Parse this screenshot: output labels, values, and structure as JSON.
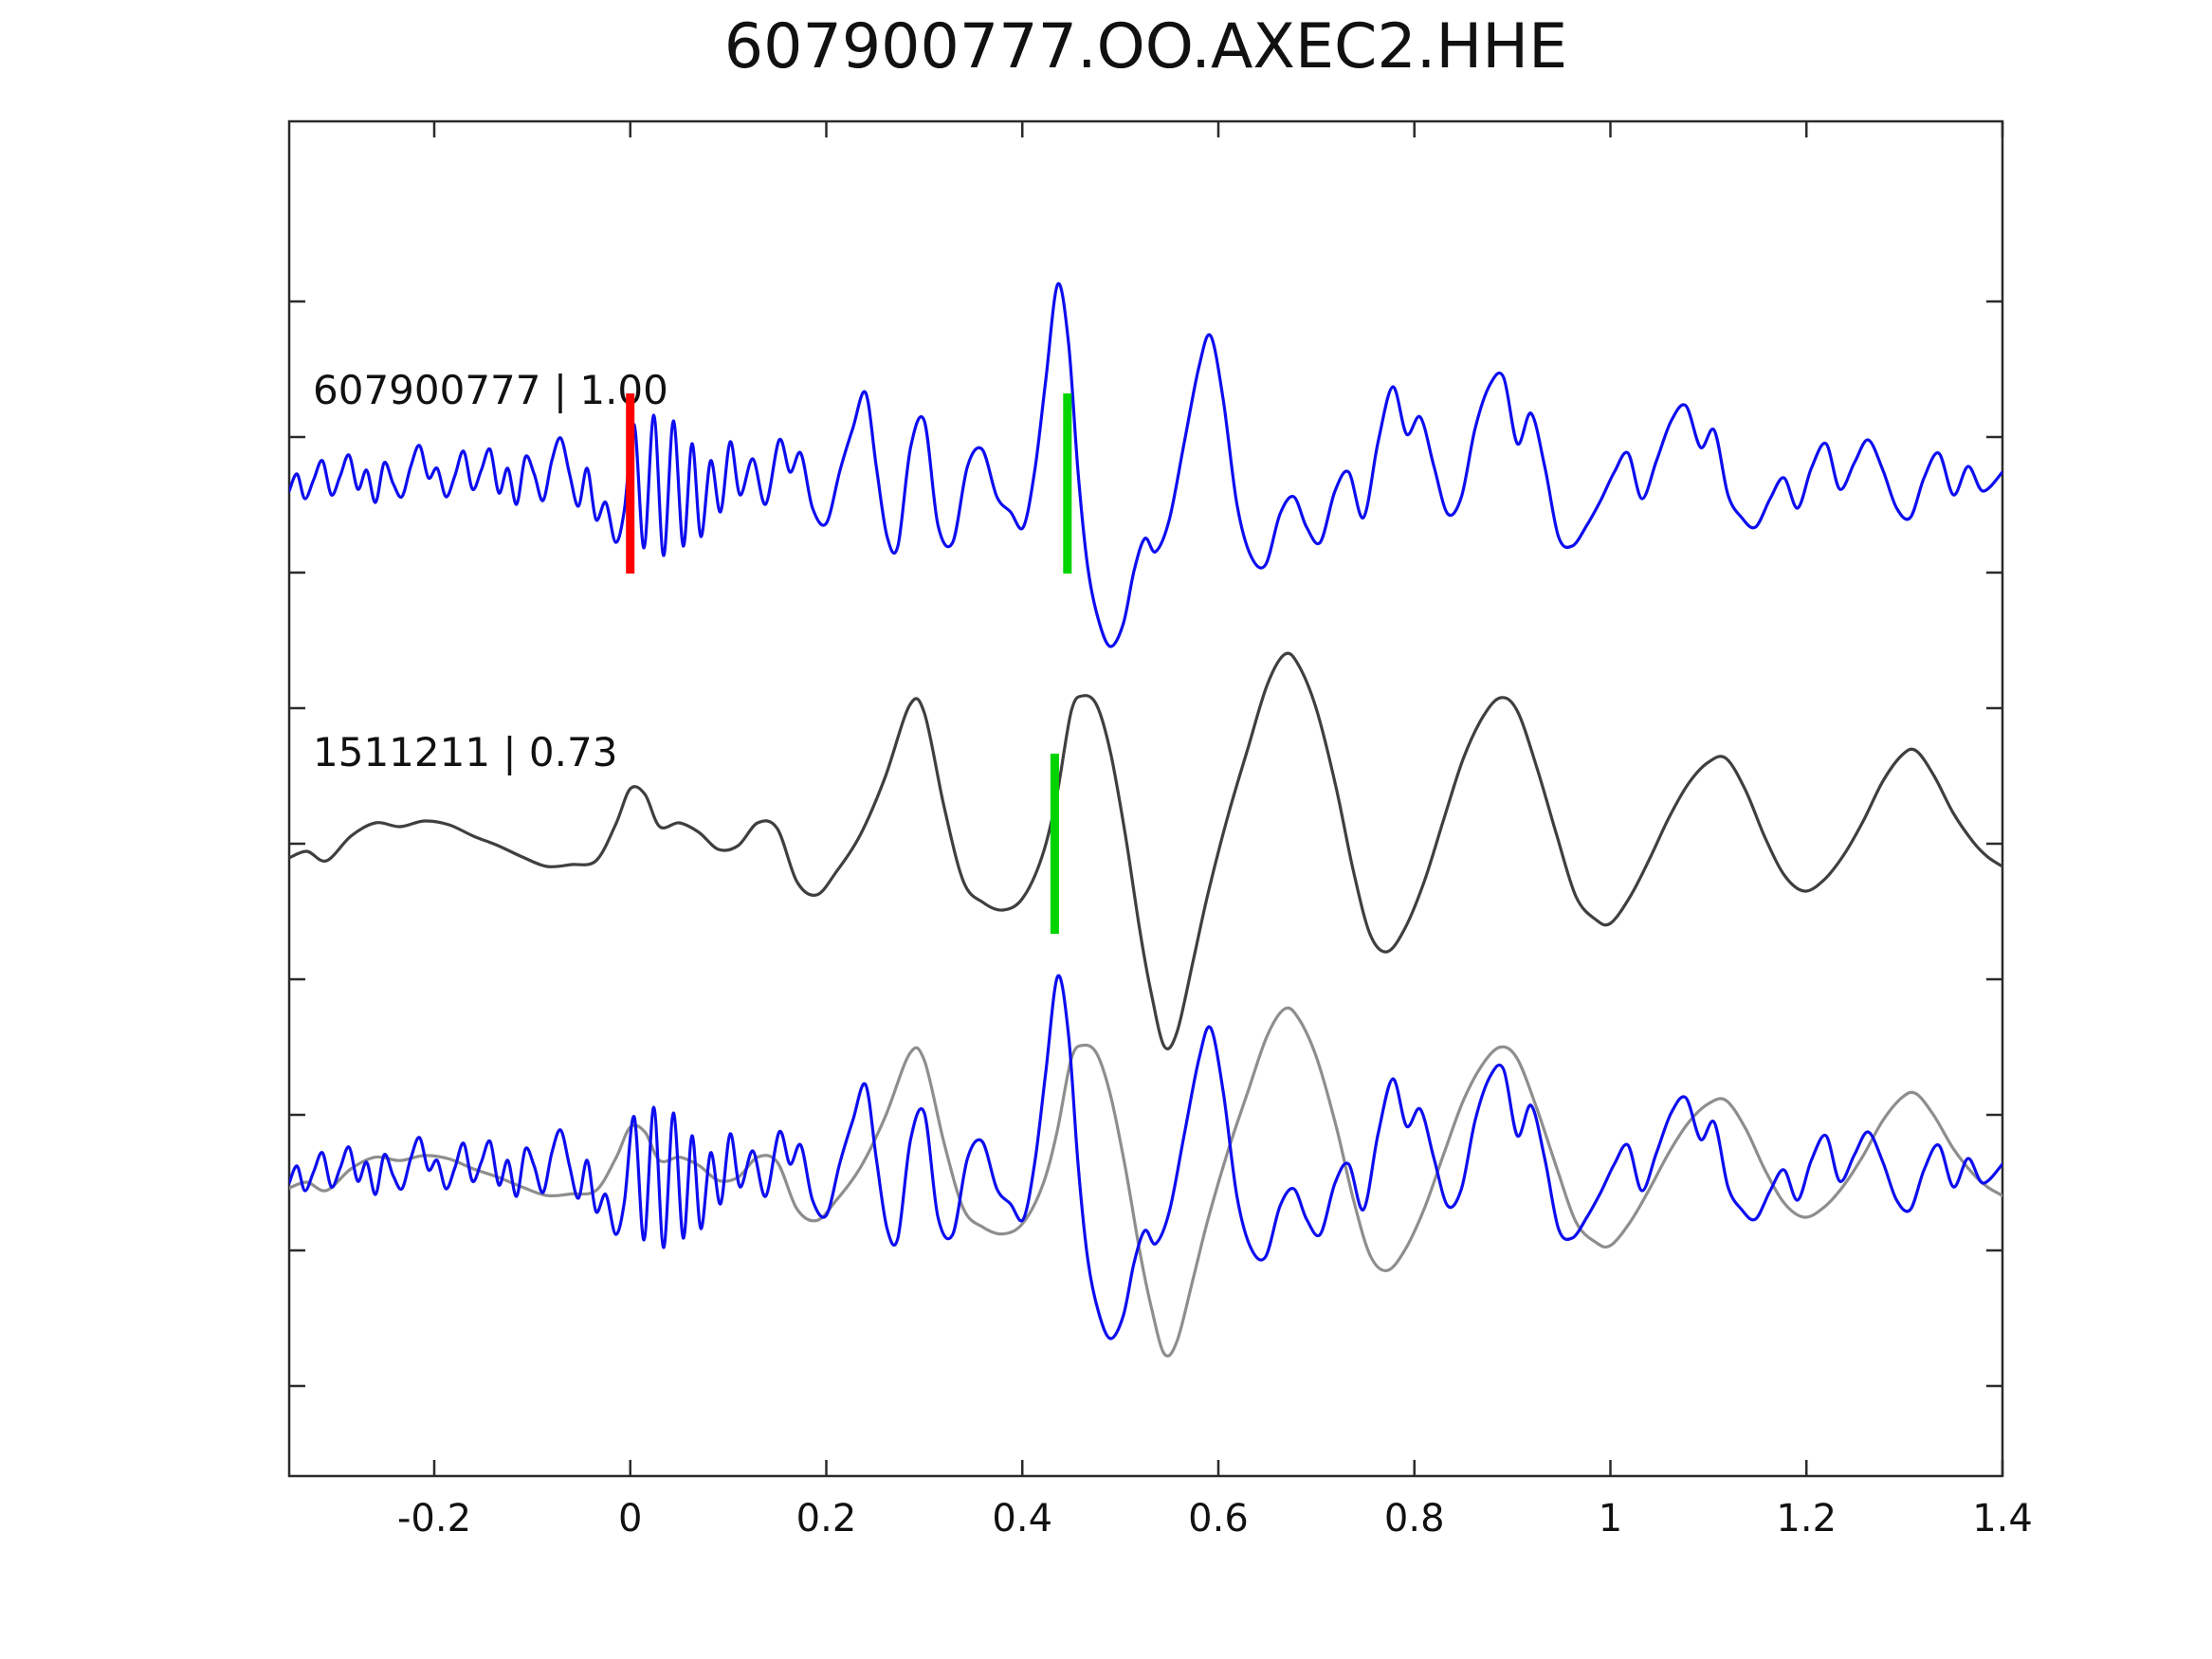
{
  "title": "607900777.OO.AXEC2.HHE",
  "colors": {
    "template_blue": "#0d0df0",
    "detection_dark_gray": "#3f3f3f",
    "overlay_light_gray": "#8e8e8e",
    "pick_red": "#ff0000",
    "pick_green": "#00d400",
    "axis": "#2b2b2b",
    "background": "#ffffff"
  },
  "chart_data": {
    "type": "line",
    "title": "607900777.OO.AXEC2.HHE",
    "xlabel": "",
    "ylabel": "",
    "xlim": [
      -0.348,
      1.4
    ],
    "grid": false,
    "legend_position": "none",
    "x_axis": {
      "tick_values": [
        -0.2,
        0,
        0.2,
        0.4,
        0.6,
        0.8,
        1,
        1.2,
        1.4
      ],
      "tick_labels": [
        "-0.2",
        "0",
        "0.2",
        "0.4",
        "0.6",
        "0.8",
        "1",
        "1.2",
        "1.4"
      ]
    },
    "y_axis": {
      "tick_labels": [],
      "note": "unlabeled normalized amplitude, three stacked traces"
    },
    "traces": [
      {
        "id": "template",
        "label": "607900777 | 1.00",
        "event_id": "607900777",
        "correlation": 1.0,
        "color": "#0d0df0",
        "row": 0,
        "points": [
          [
            -0.348,
            -8
          ],
          [
            -0.34,
            10
          ],
          [
            -0.332,
            -16
          ],
          [
            -0.323,
            4
          ],
          [
            -0.314,
            24
          ],
          [
            -0.305,
            -12
          ],
          [
            -0.296,
            8
          ],
          [
            -0.287,
            30
          ],
          [
            -0.278,
            -6
          ],
          [
            -0.269,
            14
          ],
          [
            -0.26,
            -20
          ],
          [
            -0.251,
            22
          ],
          [
            -0.242,
            0
          ],
          [
            -0.233,
            -14
          ],
          [
            -0.224,
            18
          ],
          [
            -0.215,
            40
          ],
          [
            -0.206,
            6
          ],
          [
            -0.197,
            16
          ],
          [
            -0.188,
            -14
          ],
          [
            -0.179,
            8
          ],
          [
            -0.17,
            34
          ],
          [
            -0.161,
            -6
          ],
          [
            -0.152,
            14
          ],
          [
            -0.143,
            36
          ],
          [
            -0.134,
            -10
          ],
          [
            -0.125,
            16
          ],
          [
            -0.116,
            -22
          ],
          [
            -0.107,
            28
          ],
          [
            -0.098,
            10
          ],
          [
            -0.089,
            -18
          ],
          [
            -0.08,
            24
          ],
          [
            -0.071,
            48
          ],
          [
            -0.062,
            10
          ],
          [
            -0.053,
            -24
          ],
          [
            -0.044,
            16
          ],
          [
            -0.035,
            -38
          ],
          [
            -0.025,
            -20
          ],
          [
            -0.015,
            -62
          ],
          [
            -0.006,
            -28
          ],
          [
            0.004,
            62
          ],
          [
            0.014,
            -68
          ],
          [
            0.024,
            72
          ],
          [
            0.034,
            -76
          ],
          [
            0.044,
            66
          ],
          [
            0.054,
            -66
          ],
          [
            0.063,
            42
          ],
          [
            0.072,
            -56
          ],
          [
            0.082,
            24
          ],
          [
            0.092,
            -30
          ],
          [
            0.102,
            44
          ],
          [
            0.112,
            -12
          ],
          [
            0.125,
            26
          ],
          [
            0.138,
            -22
          ],
          [
            0.152,
            46
          ],
          [
            0.163,
            12
          ],
          [
            0.174,
            32
          ],
          [
            0.186,
            -26
          ],
          [
            0.2,
            -42
          ],
          [
            0.214,
            14
          ],
          [
            0.227,
            58
          ],
          [
            0.24,
            96
          ],
          [
            0.251,
            18
          ],
          [
            0.262,
            -56
          ],
          [
            0.273,
            -66
          ],
          [
            0.286,
            38
          ],
          [
            0.3,
            66
          ],
          [
            0.314,
            -44
          ],
          [
            0.329,
            -62
          ],
          [
            0.344,
            18
          ],
          [
            0.359,
            36
          ],
          [
            0.374,
            -14
          ],
          [
            0.388,
            -30
          ],
          [
            0.401,
            -46
          ],
          [
            0.413,
            16
          ],
          [
            0.424,
            110
          ],
          [
            0.436,
            210
          ],
          [
            0.447,
            150
          ],
          [
            0.457,
            10
          ],
          [
            0.467,
            -90
          ],
          [
            0.478,
            -145
          ],
          [
            0.49,
            -172
          ],
          [
            0.503,
            -148
          ],
          [
            0.514,
            -92
          ],
          [
            0.525,
            -58
          ],
          [
            0.536,
            -72
          ],
          [
            0.55,
            -38
          ],
          [
            0.565,
            42
          ],
          [
            0.58,
            122
          ],
          [
            0.592,
            156
          ],
          [
            0.605,
            88
          ],
          [
            0.619,
            -22
          ],
          [
            0.633,
            -76
          ],
          [
            0.648,
            -86
          ],
          [
            0.663,
            -32
          ],
          [
            0.677,
            -14
          ],
          [
            0.69,
            -46
          ],
          [
            0.704,
            -62
          ],
          [
            0.719,
            -8
          ],
          [
            0.733,
            12
          ],
          [
            0.748,
            -36
          ],
          [
            0.763,
            44
          ],
          [
            0.778,
            102
          ],
          [
            0.792,
            52
          ],
          [
            0.806,
            70
          ],
          [
            0.82,
            18
          ],
          [
            0.834,
            -32
          ],
          [
            0.848,
            -14
          ],
          [
            0.862,
            58
          ],
          [
            0.877,
            104
          ],
          [
            0.891,
            112
          ],
          [
            0.905,
            42
          ],
          [
            0.919,
            74
          ],
          [
            0.933,
            18
          ],
          [
            0.947,
            -56
          ],
          [
            0.961,
            -66
          ],
          [
            0.976,
            -44
          ],
          [
            0.99,
            -18
          ],
          [
            1.004,
            12
          ],
          [
            1.018,
            32
          ],
          [
            1.032,
            -16
          ],
          [
            1.047,
            24
          ],
          [
            1.062,
            66
          ],
          [
            1.077,
            82
          ],
          [
            1.092,
            38
          ],
          [
            1.106,
            56
          ],
          [
            1.12,
            -12
          ],
          [
            1.134,
            -36
          ],
          [
            1.148,
            -46
          ],
          [
            1.163,
            -16
          ],
          [
            1.177,
            6
          ],
          [
            1.191,
            -26
          ],
          [
            1.205,
            16
          ],
          [
            1.22,
            42
          ],
          [
            1.234,
            -6
          ],
          [
            1.249,
            22
          ],
          [
            1.263,
            46
          ],
          [
            1.278,
            14
          ],
          [
            1.292,
            -26
          ],
          [
            1.306,
            -36
          ],
          [
            1.32,
            6
          ],
          [
            1.335,
            32
          ],
          [
            1.35,
            -12
          ],
          [
            1.365,
            18
          ],
          [
            1.38,
            -8
          ],
          [
            1.4,
            12
          ]
        ]
      },
      {
        "id": "detection",
        "label": "1511211 | 0.73",
        "event_id": "1511211",
        "correlation": 0.73,
        "color": "#3f3f3f",
        "row": 1,
        "points": [
          [
            -0.348,
            -15
          ],
          [
            -0.33,
            -8
          ],
          [
            -0.31,
            -18
          ],
          [
            -0.285,
            8
          ],
          [
            -0.26,
            22
          ],
          [
            -0.235,
            18
          ],
          [
            -0.21,
            24
          ],
          [
            -0.185,
            20
          ],
          [
            -0.16,
            8
          ],
          [
            -0.135,
            -2
          ],
          [
            -0.11,
            -14
          ],
          [
            -0.085,
            -24
          ],
          [
            -0.06,
            -22
          ],
          [
            -0.035,
            -18
          ],
          [
            -0.015,
            20
          ],
          [
            0.0,
            58
          ],
          [
            0.015,
            52
          ],
          [
            0.03,
            18
          ],
          [
            0.05,
            22
          ],
          [
            0.07,
            12
          ],
          [
            0.09,
            -6
          ],
          [
            0.11,
            -2
          ],
          [
            0.13,
            22
          ],
          [
            0.15,
            16
          ],
          [
            0.17,
            -40
          ],
          [
            0.19,
            -54
          ],
          [
            0.21,
            -30
          ],
          [
            0.235,
            10
          ],
          [
            0.26,
            70
          ],
          [
            0.285,
            146
          ],
          [
            0.3,
            138
          ],
          [
            0.32,
            40
          ],
          [
            0.34,
            -40
          ],
          [
            0.36,
            -62
          ],
          [
            0.38,
            -70
          ],
          [
            0.4,
            -58
          ],
          [
            0.42,
            -14
          ],
          [
            0.435,
            50
          ],
          [
            0.45,
            140
          ],
          [
            0.462,
            156
          ],
          [
            0.476,
            146
          ],
          [
            0.49,
            96
          ],
          [
            0.505,
            10
          ],
          [
            0.52,
            -92
          ],
          [
            0.532,
            -160
          ],
          [
            0.545,
            -214
          ],
          [
            0.558,
            -198
          ],
          [
            0.575,
            -120
          ],
          [
            0.59,
            -50
          ],
          [
            0.61,
            30
          ],
          [
            0.63,
            100
          ],
          [
            0.65,
            168
          ],
          [
            0.668,
            200
          ],
          [
            0.682,
            188
          ],
          [
            0.7,
            142
          ],
          [
            0.72,
            60
          ],
          [
            0.738,
            -30
          ],
          [
            0.755,
            -96
          ],
          [
            0.772,
            -114
          ],
          [
            0.79,
            -90
          ],
          [
            0.81,
            -40
          ],
          [
            0.83,
            26
          ],
          [
            0.85,
            90
          ],
          [
            0.87,
            134
          ],
          [
            0.888,
            154
          ],
          [
            0.905,
            140
          ],
          [
            0.925,
            80
          ],
          [
            0.945,
            10
          ],
          [
            0.965,
            -56
          ],
          [
            0.985,
            -80
          ],
          [
            1.0,
            -84
          ],
          [
            1.02,
            -56
          ],
          [
            1.04,
            -16
          ],
          [
            1.06,
            28
          ],
          [
            1.08,
            64
          ],
          [
            1.1,
            86
          ],
          [
            1.118,
            90
          ],
          [
            1.138,
            56
          ],
          [
            1.158,
            6
          ],
          [
            1.178,
            -34
          ],
          [
            1.198,
            -50
          ],
          [
            1.218,
            -38
          ],
          [
            1.238,
            -12
          ],
          [
            1.258,
            24
          ],
          [
            1.278,
            66
          ],
          [
            1.298,
            94
          ],
          [
            1.312,
            98
          ],
          [
            1.33,
            72
          ],
          [
            1.35,
            32
          ],
          [
            1.37,
            2
          ],
          [
            1.385,
            -14
          ],
          [
            1.4,
            -24
          ]
        ]
      }
    ],
    "overlay": {
      "row": 2,
      "members": [
        {
          "trace": "detection",
          "color": "#8e8e8e",
          "scale": 0.88
        },
        {
          "trace": "template",
          "color": "#0d0df0",
          "scale": 1.0
        }
      ]
    },
    "markers": [
      {
        "row": 0,
        "t": 0.0,
        "color": "#ff0000",
        "kind": "template-pick"
      },
      {
        "row": 0,
        "t": 0.446,
        "color": "#00d400",
        "kind": "detection-pick"
      },
      {
        "row": 1,
        "t": 0.433,
        "color": "#00d400",
        "kind": "detection-pick"
      }
    ]
  }
}
